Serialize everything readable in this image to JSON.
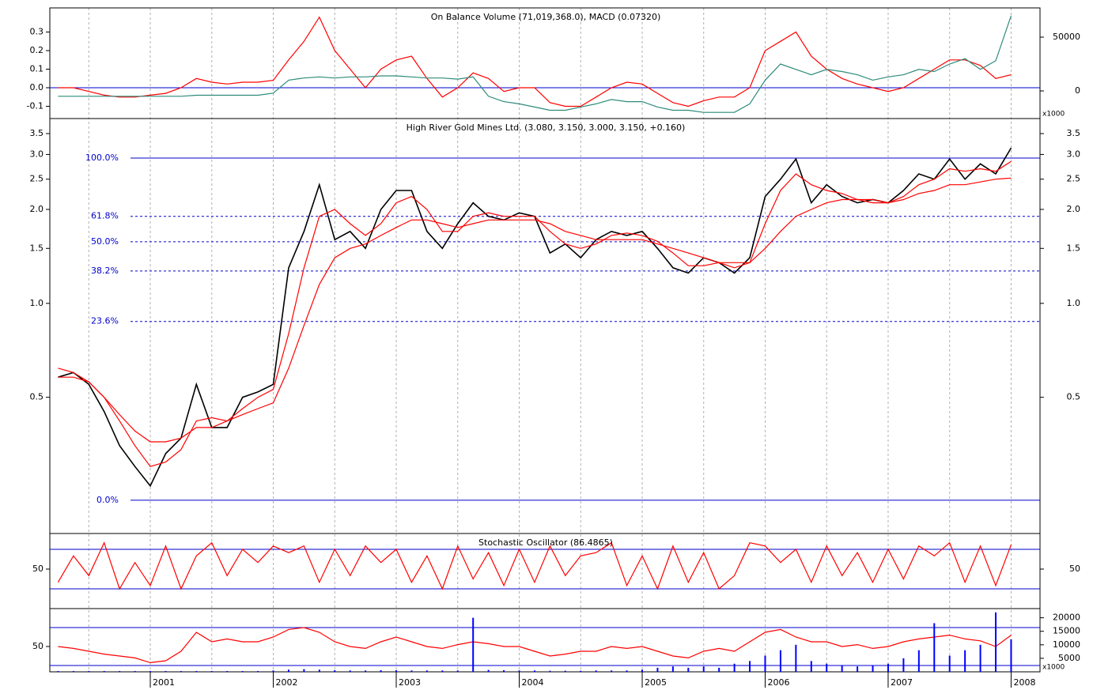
{
  "chart_data": [
    {
      "type": "line",
      "title": "On Balance Volume (71,019,368.0), MACD (0.07320)",
      "x": [
        2000.25,
        2000.375,
        2000.5,
        2000.625,
        2000.75,
        2000.875,
        2001,
        2001.125,
        2001.25,
        2001.375,
        2001.5,
        2001.625,
        2001.75,
        2001.875,
        2002,
        2002.125,
        2002.25,
        2002.375,
        2002.5,
        2002.625,
        2002.75,
        2002.875,
        2003,
        2003.125,
        2003.25,
        2003.375,
        2003.5,
        2003.625,
        2003.75,
        2003.875,
        2004,
        2004.125,
        2004.25,
        2004.375,
        2004.5,
        2004.625,
        2004.75,
        2004.875,
        2005,
        2005.125,
        2005.25,
        2005.375,
        2005.5,
        2005.625,
        2005.75,
        2005.875,
        2006,
        2006.125,
        2006.25,
        2006.375,
        2006.5,
        2006.625,
        2006.75,
        2006.875,
        2007,
        2007.125,
        2007.25,
        2007.375,
        2007.5,
        2007.625,
        2007.75,
        2007.875,
        2008
      ],
      "xlim": [
        2000.183,
        2008.235
      ],
      "ylim": [
        -0.166,
        0.43
      ],
      "yticks": [
        -0.1,
        {
          "value": 0,
          "label": "0.0"
        },
        0.1,
        0.2,
        0.3
      ],
      "y2lim": [
        -25700,
        77200
      ],
      "y2ticks": [
        0,
        50000
      ],
      "ref_lines": [
        0
      ],
      "multiplier_label": "x1000",
      "series": [
        {
          "name": "MACD",
          "color": "#ff0000",
          "values": [
            0,
            0,
            -0.02,
            -0.04,
            -0.05,
            -0.05,
            -0.04,
            -0.03,
            0,
            0.05,
            0.03,
            0.02,
            0.03,
            0.03,
            0.04,
            0.15,
            0.25,
            0.38,
            0.2,
            0.1,
            0,
            0.1,
            0.15,
            0.17,
            0.05,
            -0.05,
            0,
            0.08,
            0.05,
            -0.02,
            0,
            0,
            -0.08,
            -0.1,
            -0.1,
            -0.05,
            0,
            0.03,
            0.02,
            -0.03,
            -0.08,
            -0.1,
            -0.07,
            -0.05,
            -0.05,
            0,
            0.2,
            0.25,
            0.3,
            0.17,
            0.1,
            0.05,
            0.02,
            0,
            -0.02,
            0,
            0.05,
            0.1,
            0.15,
            0.15,
            0.12,
            0.05,
            0.07
          ]
        },
        {
          "name": "On Balance Volume",
          "color": "#2e8b7a",
          "axis": "y2",
          "values": [
            -5000,
            -5000,
            -5000,
            -5000,
            -5000,
            -5000,
            -5000,
            -5000,
            -5000,
            -4000,
            -4000,
            -4000,
            -4000,
            -4000,
            -2000,
            10000,
            12000,
            13000,
            12000,
            13000,
            13000,
            14000,
            14000,
            13000,
            12000,
            12000,
            11000,
            13000,
            -5000,
            -10000,
            -12000,
            -15000,
            -18000,
            -18000,
            -15000,
            -12000,
            -8000,
            -10000,
            -10000,
            -15000,
            -18000,
            -18000,
            -20000,
            -20000,
            -20000,
            -12000,
            10000,
            25000,
            20000,
            15000,
            20000,
            18000,
            15000,
            10000,
            13000,
            15000,
            20000,
            18000,
            25000,
            30000,
            20000,
            28000,
            70000
          ]
        }
      ]
    },
    {
      "type": "line",
      "title": "High River Gold Mines Ltd. (3.080, 3.150, 3.000, 3.150, +0.160)",
      "log_scale": true,
      "x": [
        2000.25,
        2000.375,
        2000.5,
        2000.625,
        2000.75,
        2000.875,
        2001,
        2001.125,
        2001.25,
        2001.375,
        2001.5,
        2001.625,
        2001.75,
        2001.875,
        2002,
        2002.125,
        2002.25,
        2002.375,
        2002.5,
        2002.625,
        2002.75,
        2002.875,
        2003,
        2003.125,
        2003.25,
        2003.375,
        2003.5,
        2003.625,
        2003.75,
        2003.875,
        2004,
        2004.125,
        2004.25,
        2004.375,
        2004.5,
        2004.625,
        2004.75,
        2004.875,
        2005,
        2005.125,
        2005.25,
        2005.375,
        2005.5,
        2005.625,
        2005.75,
        2005.875,
        2006,
        2006.125,
        2006.25,
        2006.375,
        2006.5,
        2006.625,
        2006.75,
        2006.875,
        2007,
        2007.125,
        2007.25,
        2007.375,
        2007.5,
        2007.625,
        2007.75,
        2007.875,
        2008
      ],
      "xlim": [
        2000.183,
        2008.235
      ],
      "ylim": [
        0.183,
        3.91
      ],
      "yticks": [
        0.5,
        {
          "value": 1,
          "label": "1.0"
        },
        1.5,
        {
          "value": 2,
          "label": "2.0"
        },
        2.5,
        {
          "value": 3,
          "label": "3.0"
        },
        3.5
      ],
      "levels": [
        {
          "label": "100.0%",
          "value": 2.92,
          "dashed": false
        },
        {
          "label": "61.8%",
          "value": 1.9,
          "dashed": true
        },
        {
          "label": "50.0%",
          "value": 1.575,
          "dashed": true
        },
        {
          "label": "38.2%",
          "value": 1.27,
          "dashed": true
        },
        {
          "label": "23.6%",
          "value": 0.875,
          "dashed": true
        },
        {
          "label": "0.0%",
          "value": 0.234,
          "dashed": false
        }
      ],
      "series": [
        {
          "name": "Price",
          "color": "#000000",
          "values": [
            0.58,
            0.6,
            0.55,
            0.45,
            0.35,
            0.3,
            0.26,
            0.33,
            0.37,
            0.55,
            0.4,
            0.4,
            0.5,
            0.52,
            0.55,
            1.3,
            1.7,
            2.4,
            1.6,
            1.7,
            1.5,
            2.0,
            2.3,
            2.3,
            1.7,
            1.5,
            1.8,
            2.1,
            1.9,
            1.85,
            1.95,
            1.9,
            1.45,
            1.55,
            1.4,
            1.6,
            1.7,
            1.65,
            1.7,
            1.5,
            1.3,
            1.25,
            1.4,
            1.35,
            1.25,
            1.4,
            2.2,
            2.5,
            2.9,
            2.1,
            2.4,
            2.2,
            2.1,
            2.15,
            2.1,
            2.3,
            2.6,
            2.5,
            2.9,
            2.5,
            2.8,
            2.6,
            3.15
          ]
        },
        {
          "name": "Short MA",
          "color": "#ff0000",
          "values": [
            0.58,
            0.58,
            0.56,
            0.5,
            0.42,
            0.35,
            0.3,
            0.31,
            0.34,
            0.42,
            0.43,
            0.42,
            0.46,
            0.5,
            0.53,
            0.8,
            1.3,
            1.9,
            2.0,
            1.8,
            1.65,
            1.8,
            2.1,
            2.2,
            2.0,
            1.7,
            1.7,
            1.9,
            1.95,
            1.9,
            1.9,
            1.9,
            1.7,
            1.55,
            1.5,
            1.55,
            1.65,
            1.68,
            1.65,
            1.58,
            1.45,
            1.32,
            1.32,
            1.35,
            1.3,
            1.35,
            1.8,
            2.3,
            2.6,
            2.4,
            2.3,
            2.25,
            2.15,
            2.15,
            2.1,
            2.2,
            2.4,
            2.5,
            2.7,
            2.65,
            2.7,
            2.65,
            2.85
          ]
        },
        {
          "name": "Long MA",
          "color": "#ff0000",
          "values": [
            0.62,
            0.6,
            0.56,
            0.5,
            0.44,
            0.39,
            0.36,
            0.36,
            0.37,
            0.4,
            0.4,
            0.42,
            0.44,
            0.46,
            0.48,
            0.62,
            0.85,
            1.15,
            1.4,
            1.5,
            1.55,
            1.65,
            1.75,
            1.85,
            1.85,
            1.8,
            1.75,
            1.8,
            1.85,
            1.85,
            1.85,
            1.85,
            1.8,
            1.7,
            1.65,
            1.6,
            1.6,
            1.6,
            1.6,
            1.55,
            1.5,
            1.45,
            1.4,
            1.35,
            1.35,
            1.35,
            1.5,
            1.7,
            1.9,
            2.0,
            2.1,
            2.15,
            2.15,
            2.1,
            2.1,
            2.15,
            2.25,
            2.3,
            2.4,
            2.4,
            2.45,
            2.5,
            2.52
          ]
        }
      ]
    },
    {
      "type": "line",
      "title": "Stochastic Oscillator (86.4865)",
      "x": [
        2000.25,
        2000.375,
        2000.5,
        2000.625,
        2000.75,
        2000.875,
        2001,
        2001.125,
        2001.25,
        2001.375,
        2001.5,
        2001.625,
        2001.75,
        2001.875,
        2002,
        2002.125,
        2002.25,
        2002.375,
        2002.5,
        2002.625,
        2002.75,
        2002.875,
        2003,
        2003.125,
        2003.25,
        2003.375,
        2003.5,
        2003.625,
        2003.75,
        2003.875,
        2004,
        2004.125,
        2004.25,
        2004.375,
        2004.5,
        2004.625,
        2004.75,
        2004.875,
        2005,
        2005.125,
        2005.25,
        2005.375,
        2005.5,
        2005.625,
        2005.75,
        2005.875,
        2006,
        2006.125,
        2006.25,
        2006.375,
        2006.5,
        2006.625,
        2006.75,
        2006.875,
        2007,
        2007.125,
        2007.25,
        2007.375,
        2007.5,
        2007.625,
        2007.75,
        2007.875,
        2008
      ],
      "xlim": [
        2000.183,
        2008.235
      ],
      "ylim": [
        -10,
        104
      ],
      "yticks": [
        50
      ],
      "ref_lines": [
        20,
        80
      ],
      "series": [
        {
          "name": "Stochastic Oscillator",
          "color": "#ff0000",
          "values": [
            30,
            70,
            40,
            90,
            20,
            60,
            25,
            85,
            20,
            70,
            90,
            40,
            80,
            60,
            85,
            75,
            85,
            30,
            80,
            40,
            85,
            60,
            80,
            30,
            70,
            20,
            85,
            35,
            75,
            25,
            80,
            30,
            85,
            40,
            70,
            75,
            90,
            25,
            70,
            20,
            85,
            30,
            75,
            20,
            40,
            90,
            85,
            60,
            80,
            30,
            85,
            40,
            75,
            30,
            80,
            35,
            85,
            70,
            90,
            30,
            85,
            25,
            87
          ]
        }
      ]
    },
    {
      "type": "line",
      "x": [
        2000.25,
        2000.375,
        2000.5,
        2000.625,
        2000.75,
        2000.875,
        2001,
        2001.125,
        2001.25,
        2001.375,
        2001.5,
        2001.625,
        2001.75,
        2001.875,
        2002,
        2002.125,
        2002.25,
        2002.375,
        2002.5,
        2002.625,
        2002.75,
        2002.875,
        2003,
        2003.125,
        2003.25,
        2003.375,
        2003.5,
        2003.625,
        2003.75,
        2003.875,
        2004,
        2004.125,
        2004.25,
        2004.375,
        2004.5,
        2004.625,
        2004.75,
        2004.875,
        2005,
        2005.125,
        2005.25,
        2005.375,
        2005.5,
        2005.625,
        2005.75,
        2005.875,
        2006,
        2006.125,
        2006.25,
        2006.375,
        2006.5,
        2006.625,
        2006.75,
        2006.875,
        2007,
        2007.125,
        2007.25,
        2007.375,
        2007.5,
        2007.625,
        2007.75,
        2007.875,
        2008
      ],
      "xlim": [
        2000.183,
        2008.235
      ],
      "xticks": [
        2001,
        2002,
        2003,
        2004,
        2005,
        2006,
        2007,
        2008
      ],
      "minor_xticks": [
        2000.5,
        2001.5,
        2002.5,
        2003.5,
        2004.5,
        2005.5,
        2006.5,
        2007.5
      ],
      "ylim": [
        23.3,
        90
      ],
      "yticks": [
        50
      ],
      "ref_lines": [
        30,
        70
      ],
      "y2lim": [
        0,
        23400
      ],
      "y2ticks": [
        5000,
        10000,
        15000,
        20000
      ],
      "multiplier_label": "x1000",
      "series": [
        {
          "name": "Oscillator",
          "color": "#ff0000",
          "values": [
            50,
            48,
            45,
            42,
            40,
            38,
            33,
            35,
            45,
            65,
            55,
            58,
            55,
            55,
            60,
            68,
            70,
            65,
            55,
            50,
            48,
            55,
            60,
            55,
            50,
            48,
            52,
            55,
            53,
            50,
            50,
            45,
            40,
            42,
            45,
            45,
            50,
            48,
            50,
            45,
            40,
            38,
            45,
            48,
            45,
            55,
            65,
            68,
            60,
            55,
            55,
            50,
            52,
            48,
            50,
            55,
            58,
            60,
            62,
            58,
            56,
            50,
            62
          ]
        },
        {
          "name": "Volume",
          "color": "#0000ff",
          "axis": "y2",
          "type": "bar",
          "values": [
            300,
            300,
            300,
            300,
            300,
            300,
            300,
            300,
            300,
            300,
            300,
            300,
            300,
            300,
            500,
            800,
            1000,
            800,
            600,
            500,
            500,
            600,
            600,
            500,
            500,
            500,
            500,
            20000,
            700,
            600,
            500,
            500,
            400,
            400,
            400,
            500,
            500,
            500,
            800,
            1500,
            2000,
            1500,
            2000,
            1500,
            3000,
            4000,
            6000,
            8000,
            10000,
            4000,
            3000,
            2500,
            2000,
            2500,
            3000,
            5000,
            8000,
            18000,
            6000,
            8000,
            10000,
            22000,
            12000
          ]
        }
      ]
    }
  ]
}
